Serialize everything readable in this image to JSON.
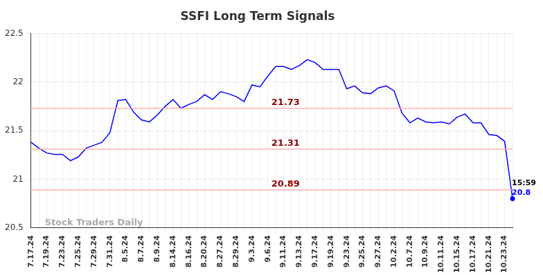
{
  "chart_data": {
    "type": "line",
    "title": "SSFI Long Term Signals",
    "categories": [
      "7.17.24",
      null,
      "7.19.24",
      null,
      "7.23.24",
      null,
      "7.25.24",
      null,
      "7.29.24",
      null,
      "7.31.24",
      null,
      "8.5.24",
      null,
      "8.7.24",
      null,
      "8.9.24",
      null,
      "8.14.24",
      null,
      "8.16.24",
      null,
      "8.20.24",
      null,
      "8.27.24",
      null,
      "8.29.24",
      null,
      "9.3.24",
      null,
      "9.6.24",
      null,
      "9.11.24",
      null,
      "9.13.24",
      null,
      "9.17.24",
      null,
      "9.19.24",
      null,
      "9.23.24",
      null,
      "9.25.24",
      null,
      "9.27.24",
      null,
      "10.2.24",
      null,
      "10.7.24",
      null,
      "10.9.24",
      null,
      "10.11.24",
      null,
      "10.15.24",
      null,
      "10.17.24",
      null,
      "10.21.24",
      null,
      "10.23.24",
      null
    ],
    "values": [
      21.38,
      21.32,
      21.27,
      21.255,
      21.255,
      21.19,
      21.23,
      21.32,
      21.35,
      21.38,
      21.48,
      21.81,
      21.82,
      21.69,
      21.61,
      21.59,
      21.66,
      21.75,
      21.82,
      21.73,
      21.77,
      21.8,
      21.87,
      21.82,
      21.9,
      21.88,
      21.85,
      21.8,
      21.97,
      21.95,
      22.06,
      22.16,
      22.16,
      22.13,
      22.17,
      22.23,
      22.2,
      22.13,
      22.13,
      22.13,
      21.93,
      21.96,
      21.89,
      21.88,
      21.94,
      21.96,
      21.91,
      21.68,
      21.58,
      21.63,
      21.59,
      21.58,
      21.59,
      21.57,
      21.64,
      21.67,
      21.58,
      21.58,
      21.46,
      21.45,
      21.39,
      20.8
    ],
    "color": "#0000ff",
    "ylim": [
      20.5,
      22.5
    ],
    "yticks": [
      20.5,
      21,
      21.5,
      22,
      22.5
    ],
    "grid": true,
    "levels": [
      21.73,
      21.31,
      20.89
    ],
    "last_point": {
      "time": "15:59",
      "value": 20.8
    },
    "watermark": "Stock Traders Daily"
  }
}
